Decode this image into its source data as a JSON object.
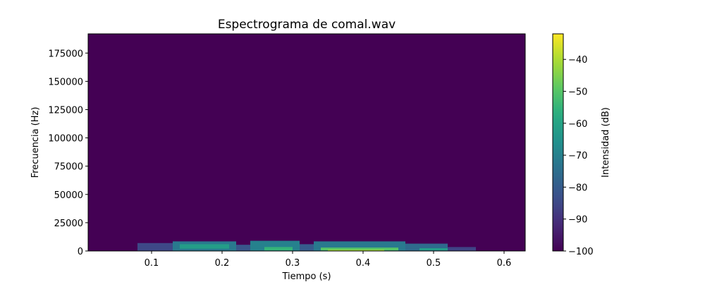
{
  "chart_data": {
    "type": "heatmap",
    "title": "Espectrograma de comal.wav",
    "xlabel": "Tiempo (s)",
    "ylabel": "Frecuencia (Hz)",
    "colorbar_label": "Intensidad (dB)",
    "colormap": "viridis",
    "xlim": [
      0.01,
      0.63
    ],
    "ylim": [
      0,
      192000
    ],
    "clim": [
      -100,
      -32
    ],
    "x_ticks": [
      0.1,
      0.2,
      0.3,
      0.4,
      0.5,
      0.6
    ],
    "x_tick_labels": [
      "0.1",
      "0.2",
      "0.3",
      "0.4",
      "0.5",
      "0.6"
    ],
    "y_ticks": [
      0,
      25000,
      50000,
      75000,
      100000,
      125000,
      150000,
      175000
    ],
    "y_tick_labels": [
      "0",
      "25000",
      "50000",
      "75000",
      "100000",
      "125000",
      "150000",
      "175000"
    ],
    "colorbar_ticks": [
      -100,
      -90,
      -80,
      -70,
      -60,
      -50,
      -40
    ],
    "colorbar_tick_labels": [
      "−100",
      "−90",
      "−80",
      "−70",
      "−60",
      "−50",
      "−40"
    ],
    "background_db": -100,
    "bands": [
      {
        "t": [
          0.08,
          0.13
        ],
        "f": [
          0,
          7000
        ],
        "db": -85
      },
      {
        "t": [
          0.13,
          0.22
        ],
        "f": [
          0,
          8500
        ],
        "db": -72
      },
      {
        "t": [
          0.14,
          0.21
        ],
        "f": [
          2000,
          6000
        ],
        "db": -62
      },
      {
        "t": [
          0.22,
          0.24
        ],
        "f": [
          0,
          5500
        ],
        "db": -82
      },
      {
        "t": [
          0.24,
          0.31
        ],
        "f": [
          0,
          9000
        ],
        "db": -70
      },
      {
        "t": [
          0.26,
          0.3
        ],
        "f": [
          500,
          3500
        ],
        "db": -55
      },
      {
        "t": [
          0.31,
          0.33
        ],
        "f": [
          0,
          6000
        ],
        "db": -80
      },
      {
        "t": [
          0.33,
          0.46
        ],
        "f": [
          0,
          8500
        ],
        "db": -72
      },
      {
        "t": [
          0.34,
          0.45
        ],
        "f": [
          500,
          3000
        ],
        "db": -50
      },
      {
        "t": [
          0.35,
          0.43
        ],
        "f": [
          0,
          1200
        ],
        "db": -42
      },
      {
        "t": [
          0.46,
          0.52
        ],
        "f": [
          0,
          6500
        ],
        "db": -76
      },
      {
        "t": [
          0.48,
          0.52
        ],
        "f": [
          500,
          2500
        ],
        "db": -62
      },
      {
        "t": [
          0.52,
          0.56
        ],
        "f": [
          0,
          3500
        ],
        "db": -86
      }
    ]
  }
}
